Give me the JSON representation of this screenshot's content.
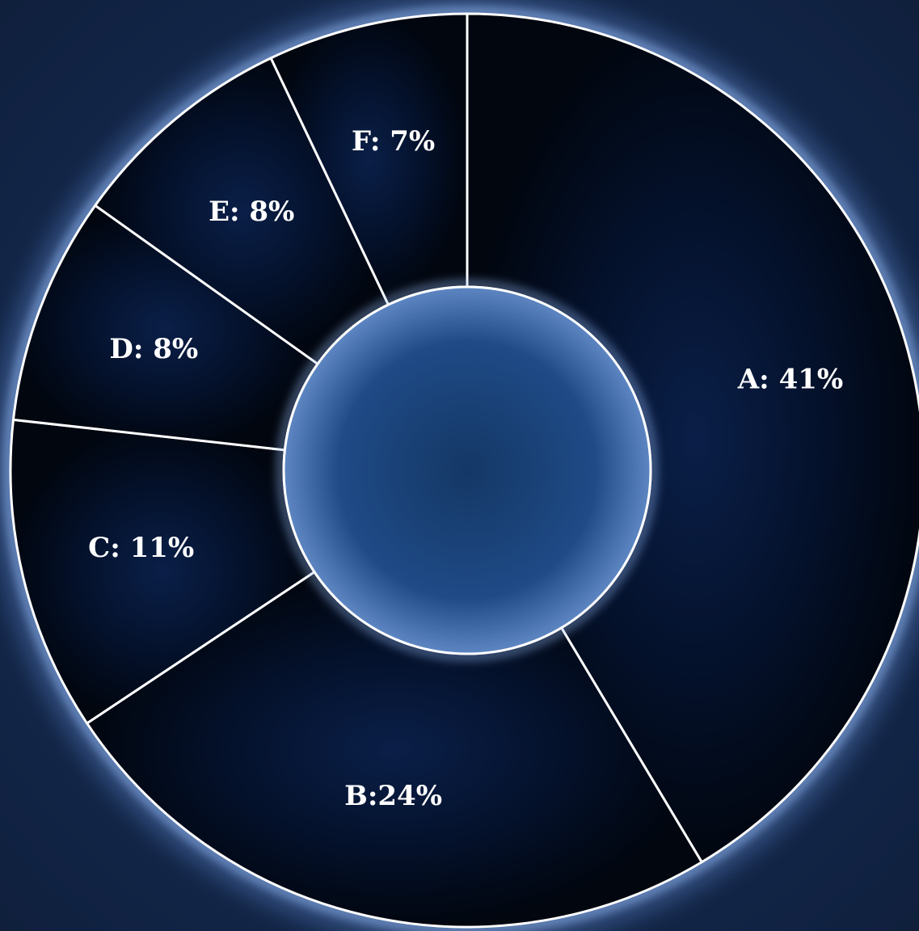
{
  "chart_data": {
    "type": "pie",
    "style": "donut",
    "categories": [
      "A",
      "B",
      "C",
      "D",
      "E",
      "F"
    ],
    "values": [
      41,
      24,
      11,
      8,
      8,
      7
    ],
    "labels": [
      "A: 41%",
      "B:24%",
      "C: 11%",
      "D: 8%",
      "E: 8%",
      "F: 7%"
    ],
    "start": "top",
    "direction": "clockwise",
    "title": "",
    "legend": "none"
  },
  "colors": {
    "background": "#12223f",
    "slice_fill": "#020816",
    "slice_border": "#ffffff",
    "glow": "#8fb8ff",
    "center_fill": "#234a86",
    "label_text": "#ffffff"
  }
}
